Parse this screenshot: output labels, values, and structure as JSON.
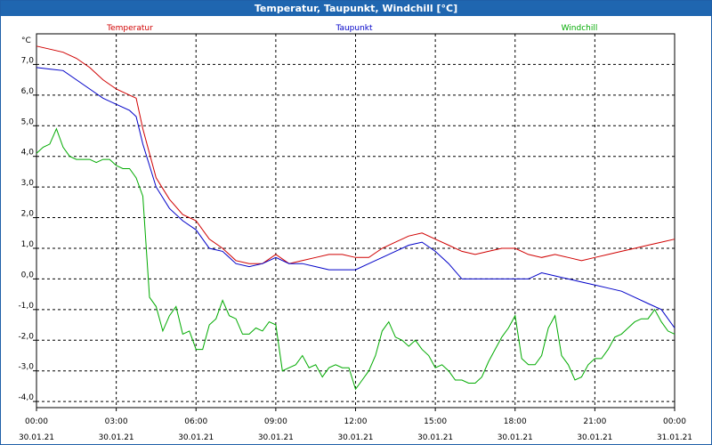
{
  "window": {
    "title": "Temperatur, Taupunkt, Windchill [°C]"
  },
  "chart_data": {
    "type": "line",
    "title": "Temperatur, Taupunkt, Windchill [°C]",
    "ylabel": "°C",
    "ylim": [
      -4.2,
      8.0
    ],
    "yticks": [
      7.0,
      6.0,
      5.0,
      4.0,
      3.0,
      2.0,
      1.0,
      0.0,
      -1.0,
      -2.0,
      -3.0,
      -4.0
    ],
    "ytick_labels": [
      "7,0",
      "6,0",
      "5,0",
      "4,0",
      "3,0",
      "2,0",
      "1,0",
      "0,0",
      "-1,0",
      "-2,0",
      "-3,0",
      "-4,0"
    ],
    "xlim": [
      0,
      24
    ],
    "xticks": [
      0,
      3,
      6,
      9,
      12,
      15,
      18,
      21,
      24
    ],
    "xtick_labels": [
      [
        "00:00",
        "30.01.21"
      ],
      [
        "03:00",
        "30.01.21"
      ],
      [
        "06:00",
        "30.01.21"
      ],
      [
        "09:00",
        "30.01.21"
      ],
      [
        "12:00",
        "30.01.21"
      ],
      [
        "15:00",
        "30.01.21"
      ],
      [
        "18:00",
        "30.01.21"
      ],
      [
        "21:00",
        "30.01.21"
      ],
      [
        "00:00",
        "31.01.21"
      ]
    ],
    "grid": true,
    "legend_position": "top",
    "series": [
      {
        "name": "Temperatur",
        "color": "#d00000",
        "x": [
          0,
          0.5,
          1,
          1.5,
          2,
          2.5,
          3,
          3.5,
          3.75,
          4,
          4.5,
          5,
          5.5,
          6,
          6.5,
          7,
          7.5,
          8,
          8.5,
          9,
          9.5,
          10,
          10.5,
          11,
          11.5,
          12,
          12.5,
          13,
          13.5,
          14,
          14.5,
          15,
          15.5,
          16,
          16.5,
          17,
          17.5,
          18,
          18.5,
          19,
          19.5,
          20,
          20.5,
          21,
          21.5,
          22,
          22.5,
          23,
          23.5,
          24
        ],
        "values": [
          7.6,
          7.5,
          7.4,
          7.2,
          6.9,
          6.5,
          6.2,
          6.0,
          5.9,
          4.9,
          3.3,
          2.6,
          2.1,
          1.9,
          1.3,
          1.0,
          0.6,
          0.5,
          0.5,
          0.8,
          0.5,
          0.6,
          0.7,
          0.8,
          0.8,
          0.7,
          0.7,
          1.0,
          1.2,
          1.4,
          1.5,
          1.3,
          1.1,
          0.9,
          0.8,
          0.9,
          1.0,
          1.0,
          0.8,
          0.7,
          0.8,
          0.7,
          0.6,
          0.7,
          0.8,
          0.9,
          1.0,
          1.1,
          1.2,
          1.3
        ]
      },
      {
        "name": "Taupunkt",
        "color": "#0000c8",
        "x": [
          0,
          0.5,
          1,
          1.5,
          2,
          2.5,
          3,
          3.5,
          3.75,
          4,
          4.5,
          5,
          5.5,
          6,
          6.5,
          7,
          7.5,
          8,
          8.5,
          9,
          9.5,
          10,
          10.5,
          11,
          11.5,
          12,
          12.5,
          13,
          13.5,
          14,
          14.5,
          15,
          15.5,
          16,
          16.5,
          17,
          17.5,
          18,
          18.5,
          19,
          19.5,
          20,
          20.5,
          21,
          21.5,
          22,
          22.5,
          23,
          23.5,
          24
        ],
        "values": [
          6.9,
          6.85,
          6.8,
          6.5,
          6.2,
          5.9,
          5.7,
          5.5,
          5.3,
          4.4,
          3.0,
          2.3,
          1.9,
          1.6,
          1.0,
          0.9,
          0.5,
          0.4,
          0.5,
          0.7,
          0.5,
          0.5,
          0.4,
          0.3,
          0.3,
          0.3,
          0.5,
          0.7,
          0.9,
          1.1,
          1.2,
          0.9,
          0.5,
          0.0,
          0.0,
          0.0,
          0.0,
          0.0,
          0.0,
          0.2,
          0.1,
          0.0,
          -0.1,
          -0.2,
          -0.3,
          -0.4,
          -0.6,
          -0.8,
          -1.0,
          -1.6
        ]
      },
      {
        "name": "Windchill",
        "color": "#00aa00",
        "x": [
          0,
          0.25,
          0.5,
          0.75,
          1,
          1.25,
          1.5,
          1.75,
          2,
          2.25,
          2.5,
          2.75,
          3,
          3.25,
          3.5,
          3.75,
          4,
          4.25,
          4.5,
          4.75,
          5,
          5.25,
          5.5,
          5.75,
          6,
          6.25,
          6.5,
          6.75,
          7,
          7.25,
          7.5,
          7.75,
          8,
          8.25,
          8.5,
          8.75,
          9,
          9.25,
          9.5,
          9.75,
          10,
          10.25,
          10.5,
          10.75,
          11,
          11.25,
          11.5,
          11.75,
          12,
          12.25,
          12.5,
          12.75,
          13,
          13.25,
          13.5,
          13.75,
          14,
          14.25,
          14.5,
          14.75,
          15,
          15.25,
          15.5,
          15.75,
          16,
          16.25,
          16.5,
          16.75,
          17,
          17.25,
          17.5,
          17.75,
          18,
          18.25,
          18.5,
          18.75,
          19,
          19.25,
          19.5,
          19.75,
          20,
          20.25,
          20.5,
          20.75,
          21,
          21.25,
          21.5,
          21.75,
          22,
          22.25,
          22.5,
          22.75,
          23,
          23.25,
          23.5,
          23.75,
          24
        ],
        "values": [
          4.1,
          4.3,
          4.4,
          4.9,
          4.3,
          4.0,
          3.9,
          3.9,
          3.9,
          3.8,
          3.9,
          3.9,
          3.7,
          3.6,
          3.6,
          3.3,
          2.7,
          -0.6,
          -0.9,
          -1.7,
          -1.2,
          -0.9,
          -1.8,
          -1.7,
          -2.3,
          -2.3,
          -1.5,
          -1.3,
          -0.7,
          -1.2,
          -1.3,
          -1.8,
          -1.8,
          -1.6,
          -1.7,
          -1.4,
          -1.5,
          -3.0,
          -2.9,
          -2.8,
          -2.5,
          -2.9,
          -2.8,
          -3.2,
          -2.9,
          -2.8,
          -2.9,
          -2.9,
          -3.6,
          -3.3,
          -3.0,
          -2.5,
          -1.7,
          -1.4,
          -1.9,
          -2.0,
          -2.2,
          -2.0,
          -2.3,
          -2.5,
          -2.9,
          -2.8,
          -3.0,
          -3.3,
          -3.3,
          -3.4,
          -3.4,
          -3.2,
          -2.7,
          -2.3,
          -1.9,
          -1.6,
          -1.2,
          -2.6,
          -2.8,
          -2.8,
          -2.5,
          -1.6,
          -1.2,
          -2.5,
          -2.8,
          -3.3,
          -3.2,
          -2.8,
          -2.6,
          -2.6,
          -2.3,
          -1.9,
          -1.8,
          -1.6,
          -1.4,
          -1.3,
          -1.3,
          -1.0,
          -1.4,
          -1.7,
          -1.8
        ]
      }
    ]
  }
}
